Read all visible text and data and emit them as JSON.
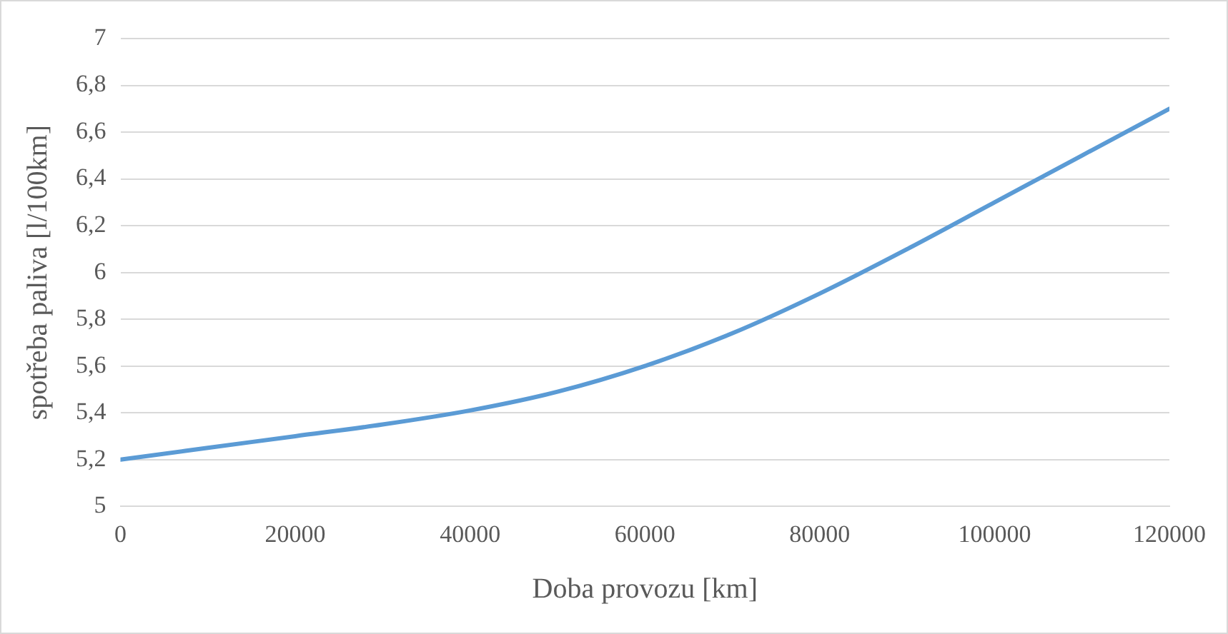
{
  "chart_data": {
    "type": "line",
    "xlabel": "Doba provozu [km]",
    "ylabel": "spotřeba paliva [l/100km]",
    "x": [
      0,
      10000,
      20000,
      30000,
      40000,
      50000,
      60000,
      70000,
      80000,
      90000,
      100000,
      110000,
      120000
    ],
    "series": [
      {
        "color": "#5b9bd5",
        "values": [
          5.2,
          5.25,
          5.3,
          5.35,
          5.41,
          5.49,
          5.6,
          5.74,
          5.91,
          6.1,
          6.3,
          6.5,
          6.7
        ]
      }
    ],
    "xlim": [
      0,
      120000
    ],
    "xticks": [
      0,
      20000,
      40000,
      60000,
      80000,
      100000,
      120000
    ],
    "ylim": [
      5,
      7
    ],
    "yticks": [
      5,
      {
        "value": 5.2,
        "label": "5,2"
      },
      {
        "value": 5.4,
        "label": "5,4"
      },
      {
        "value": 5.6,
        "label": "5,6"
      },
      {
        "value": 5.8,
        "label": "5,8"
      },
      6,
      {
        "value": 6.2,
        "label": "6,2"
      },
      {
        "value": 6.4,
        "label": "6,4"
      },
      {
        "value": 6.6,
        "label": "6,6"
      },
      {
        "value": 6.8,
        "label": "6,8"
      },
      7
    ],
    "grid": "y",
    "legend": false,
    "marker": "none",
    "line_style": "solid"
  }
}
